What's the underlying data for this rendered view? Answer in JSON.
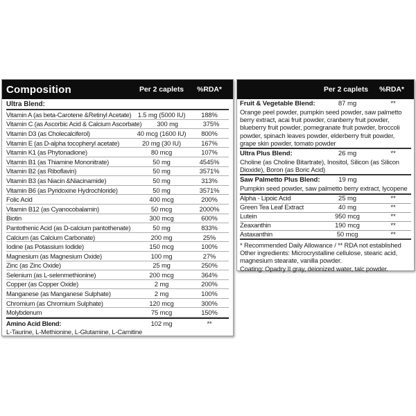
{
  "colors": {
    "bar_background": "#0d0d0d",
    "bar_text": "#ffffff",
    "body_text": "#1c1c1c",
    "thin_rule": "#aeaeae",
    "section_rule": "#343434",
    "panel_border": "#9b9b9b"
  },
  "left_panel": {
    "header": {
      "title": "Composition",
      "amount_label": "Per 2 caplets",
      "rda_label": "%RDA*"
    },
    "section_title": "Ultra Blend:",
    "rows": [
      {
        "name": "Vitamin A (as beta-Carotene &Retinyl Acetate)",
        "amount": "1.5 mg (5000 IU)",
        "rda": "188%"
      },
      {
        "name": "Vitamin C (as Ascorbic Acid & Calcium Ascorbate)",
        "amount": "300 mg",
        "rda": "375%"
      },
      {
        "name": "Vitamin D3 (as Cholecalciferol)",
        "amount": "40 mcg (1600 IU)",
        "rda": "800%"
      },
      {
        "name": "Vitamin E (as D-alpha tocopheryl acetate)",
        "amount": "20 mg (30 IU)",
        "rda": "167%"
      },
      {
        "name": "Vitamin K1 (as Phytonadione)",
        "amount": "80 mcg",
        "rda": "107%"
      },
      {
        "name": "Vitamin B1 (as Thiamine Mononitrate)",
        "amount": "50 mg",
        "rda": "4545%"
      },
      {
        "name": "Vitamin B2 (as Riboflavin)",
        "amount": "50 mg",
        "rda": "3571%"
      },
      {
        "name": "Vitamin B3 (as Niacin &Niacinamide)",
        "amount": "50 mg",
        "rda": "313%"
      },
      {
        "name": "Vitamin B6 (as Pyridoxine Hydrochloride)",
        "amount": "50 mg",
        "rda": "3571%"
      },
      {
        "name": "Folic Acid",
        "amount": "400 mcg",
        "rda": "200%"
      },
      {
        "name": "Vitamin B12 (as Cyanocobalamin)",
        "amount": "50 mcg",
        "rda": "2000%"
      },
      {
        "name": "Biotin",
        "amount": "300 mcg",
        "rda": "600%"
      },
      {
        "name": "Pantothenic Acid (as D-calcium pantothenate)",
        "amount": "50 mg",
        "rda": "833%"
      },
      {
        "name": "Calcium (as Calcium Carbonate)",
        "amount": "200 mg",
        "rda": "25%"
      },
      {
        "name": "Iodine (as Potassium Iodide)",
        "amount": "150 mcg",
        "rda": "100%"
      },
      {
        "name": "Magnesium (as Magnesium Oxide)",
        "amount": "100 mg",
        "rda": "27%"
      },
      {
        "name": "Zinc (as Zinc Oxide)",
        "amount": "25 mg",
        "rda": "250%"
      },
      {
        "name": "Selenium (as L-selenmethionine)",
        "amount": "200 mcg",
        "rda": "364%"
      },
      {
        "name": "Copper (as Copper Oxide)",
        "amount": "2 mg",
        "rda": "200%"
      },
      {
        "name": "Manganese (as Manganese Sulphate)",
        "amount": "2 mg",
        "rda": "100%"
      },
      {
        "name": "Chromium (as Chromium Sulphate)",
        "amount": "120 mcg",
        "rda": "300%"
      },
      {
        "name": "Molybdenum",
        "amount": "75 mcg",
        "rda": "150%"
      }
    ],
    "amino_blend": {
      "name": "Amino Acid Blend:",
      "amount": "102 mg",
      "rda": "**",
      "ingredients": "L-Taurine, L-Methionine, L-Glutamine, L-Carnitine"
    }
  },
  "right_panel": {
    "header": {
      "amount_label": "Per 2 caplets",
      "rda_label": "%RDA*"
    },
    "blends": [
      {
        "name": "Fruit & Vegetable Blend:",
        "amount": "87 mg",
        "rda": "**",
        "ingredients": "Orange peel powder, pumpkin seed powder, saw palmetto berry extract, acai fruit powder, cranberry fruit powder, blueberry fruit powder, pomegranate fruit powder, broccoli powder, spinach leaves powder, elderberry fruit powder, grape skin powder, tomato powder"
      },
      {
        "name": "Ultra Plus Blend:",
        "amount": "26 mg",
        "rda": "**",
        "ingredients": "Choline (as Choline Bitartrate), Inositol, Silicon (as Silicon Dioxide), Boron (as Boric Acid)"
      },
      {
        "name": "Saw Palmetto Plus Blend:",
        "amount": "19 mg",
        "rda": "",
        "ingredients": "Pumpkin seed powder, saw palmetto berry extract, lycopene"
      }
    ],
    "rows": [
      {
        "name": "Alpha - Lipoic Acid",
        "amount": "25 mg",
        "rda": "**"
      },
      {
        "name": "Green Tea Leaf Extract",
        "amount": "40 mg",
        "rda": "**"
      },
      {
        "name": "Lutein",
        "amount": "950 mcg",
        "rda": "**"
      },
      {
        "name": "Zeaxanthin",
        "amount": "190 mcg",
        "rda": "**"
      },
      {
        "name": "Astaxanthin",
        "amount": "50 mcg",
        "rda": "**"
      }
    ],
    "footnotes": [
      {
        "text": "* Recommended Daily Allowance / ** RDA not established"
      },
      {
        "text": "Other ingredients: Microcrystalline cellulose, stearic acid, magnesium stearate, vanilla powder."
      },
      {
        "text": "Coating: Opadry II gray, deionized water, talc powder."
      }
    ]
  }
}
